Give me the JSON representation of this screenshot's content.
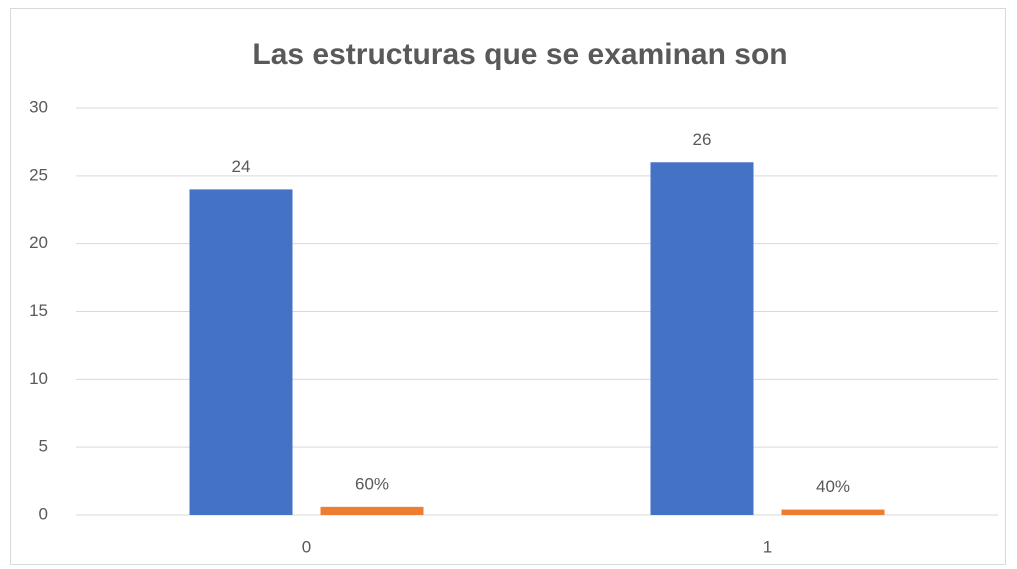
{
  "chart_data": {
    "type": "bar",
    "title": "Las estructuras que se examinan son",
    "categories": [
      "0",
      "1"
    ],
    "series": [
      {
        "color": "#4472c4",
        "values": [
          24,
          26
        ]
      },
      {
        "color": "#ed7d31",
        "values": [
          0.6,
          0.4
        ],
        "value_labels": [
          "60%",
          "40%"
        ]
      }
    ],
    "ylim": [
      0,
      30
    ],
    "yticks": [
      0,
      5,
      10,
      15,
      20,
      25,
      30
    ],
    "grid": true
  }
}
